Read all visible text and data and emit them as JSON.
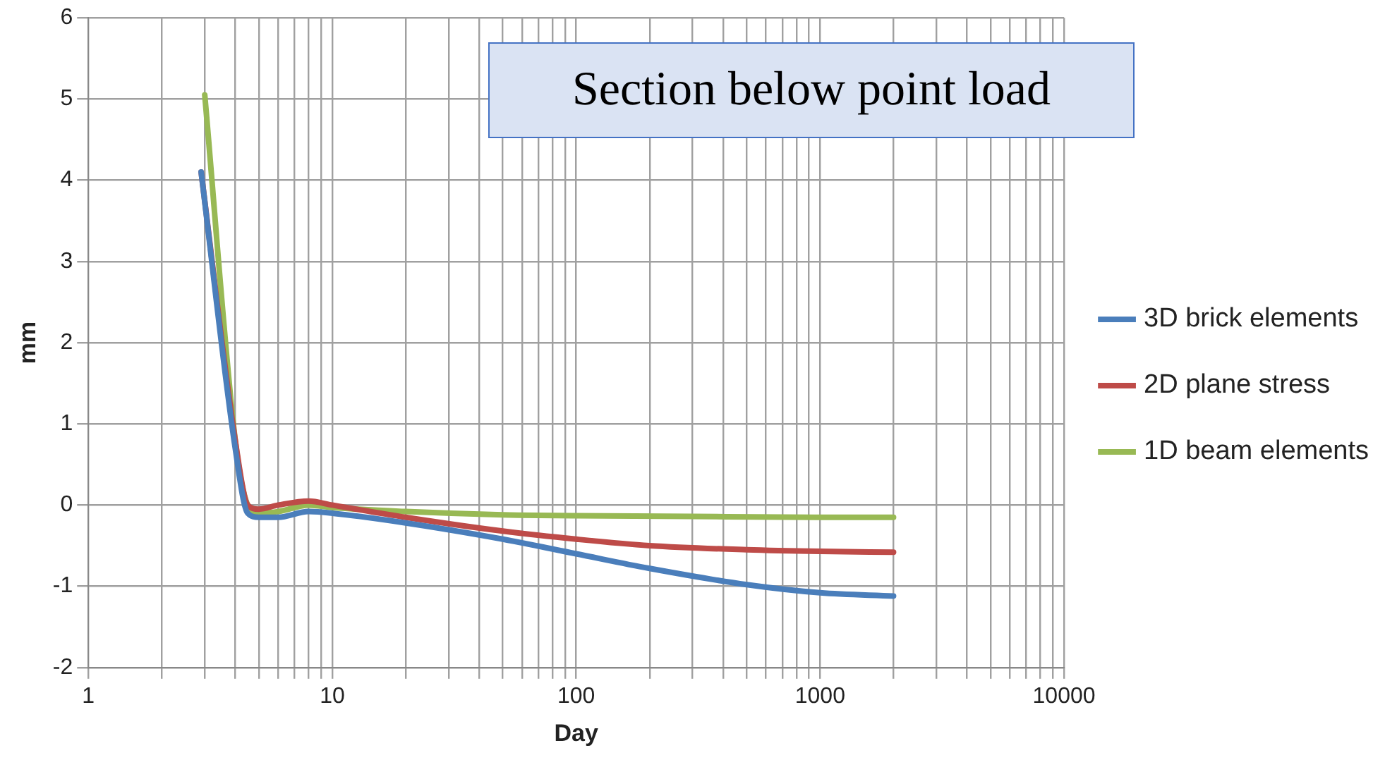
{
  "chart_data": {
    "type": "line",
    "xlabel": "Day",
    "ylabel": "mm",
    "log": "x",
    "grid": true,
    "legend": "right",
    "marker": "none",
    "line_style": "solid",
    "xlim": [
      1,
      10000
    ],
    "xticks": [
      1,
      {
        "value": 2,
        "label": null
      },
      {
        "value": 3,
        "label": null
      },
      {
        "value": 4,
        "label": null
      },
      {
        "value": 5,
        "label": null
      },
      {
        "value": 6,
        "label": null
      },
      {
        "value": 7,
        "label": null
      },
      {
        "value": 8,
        "label": null
      },
      {
        "value": 9,
        "label": null
      },
      10,
      {
        "value": 20,
        "label": null
      },
      {
        "value": 30,
        "label": null
      },
      {
        "value": 40,
        "label": null
      },
      {
        "value": 50,
        "label": null
      },
      {
        "value": 60,
        "label": null
      },
      {
        "value": 70,
        "label": null
      },
      {
        "value": 80,
        "label": null
      },
      {
        "value": 90,
        "label": null
      },
      100,
      {
        "value": 200,
        "label": null
      },
      {
        "value": 300,
        "label": null
      },
      {
        "value": 400,
        "label": null
      },
      {
        "value": 500,
        "label": null
      },
      {
        "value": 600,
        "label": null
      },
      {
        "value": 700,
        "label": null
      },
      {
        "value": 800,
        "label": null
      },
      {
        "value": 900,
        "label": null
      },
      1000,
      {
        "value": 2000,
        "label": null
      },
      {
        "value": 3000,
        "label": null
      },
      {
        "value": 4000,
        "label": null
      },
      {
        "value": 5000,
        "label": null
      },
      {
        "value": 6000,
        "label": null
      },
      {
        "value": 7000,
        "label": null
      },
      {
        "value": 8000,
        "label": null
      },
      {
        "value": 9000,
        "label": null
      },
      10000
    ],
    "ylim": [
      -2,
      6
    ],
    "yticks": [
      -2,
      -1,
      0,
      1,
      2,
      3,
      4,
      5,
      6
    ],
    "annotations": [
      "Section below point load"
    ],
    "series": [
      {
        "name": "3D brick elements",
        "color": "#4a7ebb",
        "x": [
          2.9,
          4,
          4.5,
          5,
          6,
          8,
          10,
          20,
          50,
          100,
          200,
          500,
          1000,
          2000
        ],
        "values": [
          4.1,
          0.7,
          -0.1,
          -0.15,
          -0.15,
          -0.08,
          -0.1,
          -0.22,
          -0.42,
          -0.6,
          -0.78,
          -0.98,
          -1.08,
          -1.12
        ]
      },
      {
        "name": "2D plane stress",
        "color": "#be4b48",
        "x": [
          2.9,
          4,
          4.5,
          5,
          6,
          8,
          10,
          20,
          50,
          100,
          200,
          500,
          1000,
          2000
        ],
        "values": [
          4.1,
          0.8,
          0,
          -0.05,
          0,
          0.05,
          0,
          -0.15,
          -0.32,
          -0.42,
          -0.5,
          -0.55,
          -0.57,
          -0.58
        ]
      },
      {
        "name": "1D beam elements",
        "color": "#98b954",
        "x": [
          3,
          4,
          4.5,
          5,
          6,
          8,
          10,
          20,
          50,
          100,
          300,
          1000,
          2000
        ],
        "values": [
          5.05,
          0.8,
          0,
          -0.1,
          -0.08,
          0,
          -0.03,
          -0.08,
          -0.12,
          -0.13,
          -0.14,
          -0.15,
          -0.15
        ]
      }
    ]
  }
}
